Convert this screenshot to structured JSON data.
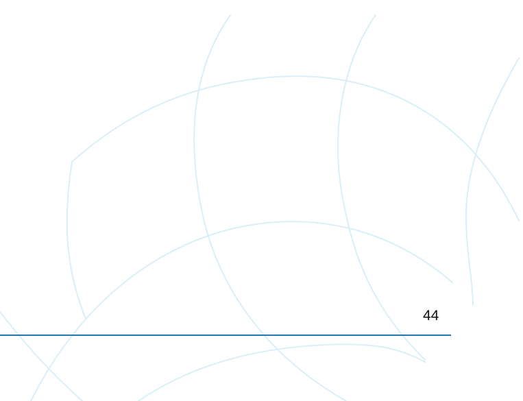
{
  "page": {
    "number": "44"
  },
  "colors": {
    "arc_stroke": "#d9eff8",
    "rule": "#1f79b3",
    "text": "#111111"
  }
}
